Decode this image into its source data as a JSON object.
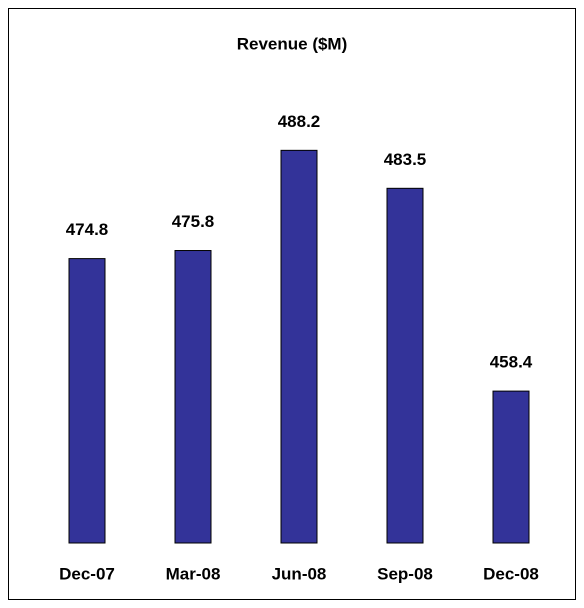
{
  "chart_data": {
    "type": "bar",
    "title": "Revenue ($M)",
    "categories": [
      "Dec-07",
      "Mar-08",
      "Jun-08",
      "Sep-08",
      "Dec-08"
    ],
    "values": [
      474.8,
      475.8,
      488.2,
      483.5,
      458.4
    ],
    "color": "#333399",
    "ylim": [
      439.6,
      500
    ]
  }
}
